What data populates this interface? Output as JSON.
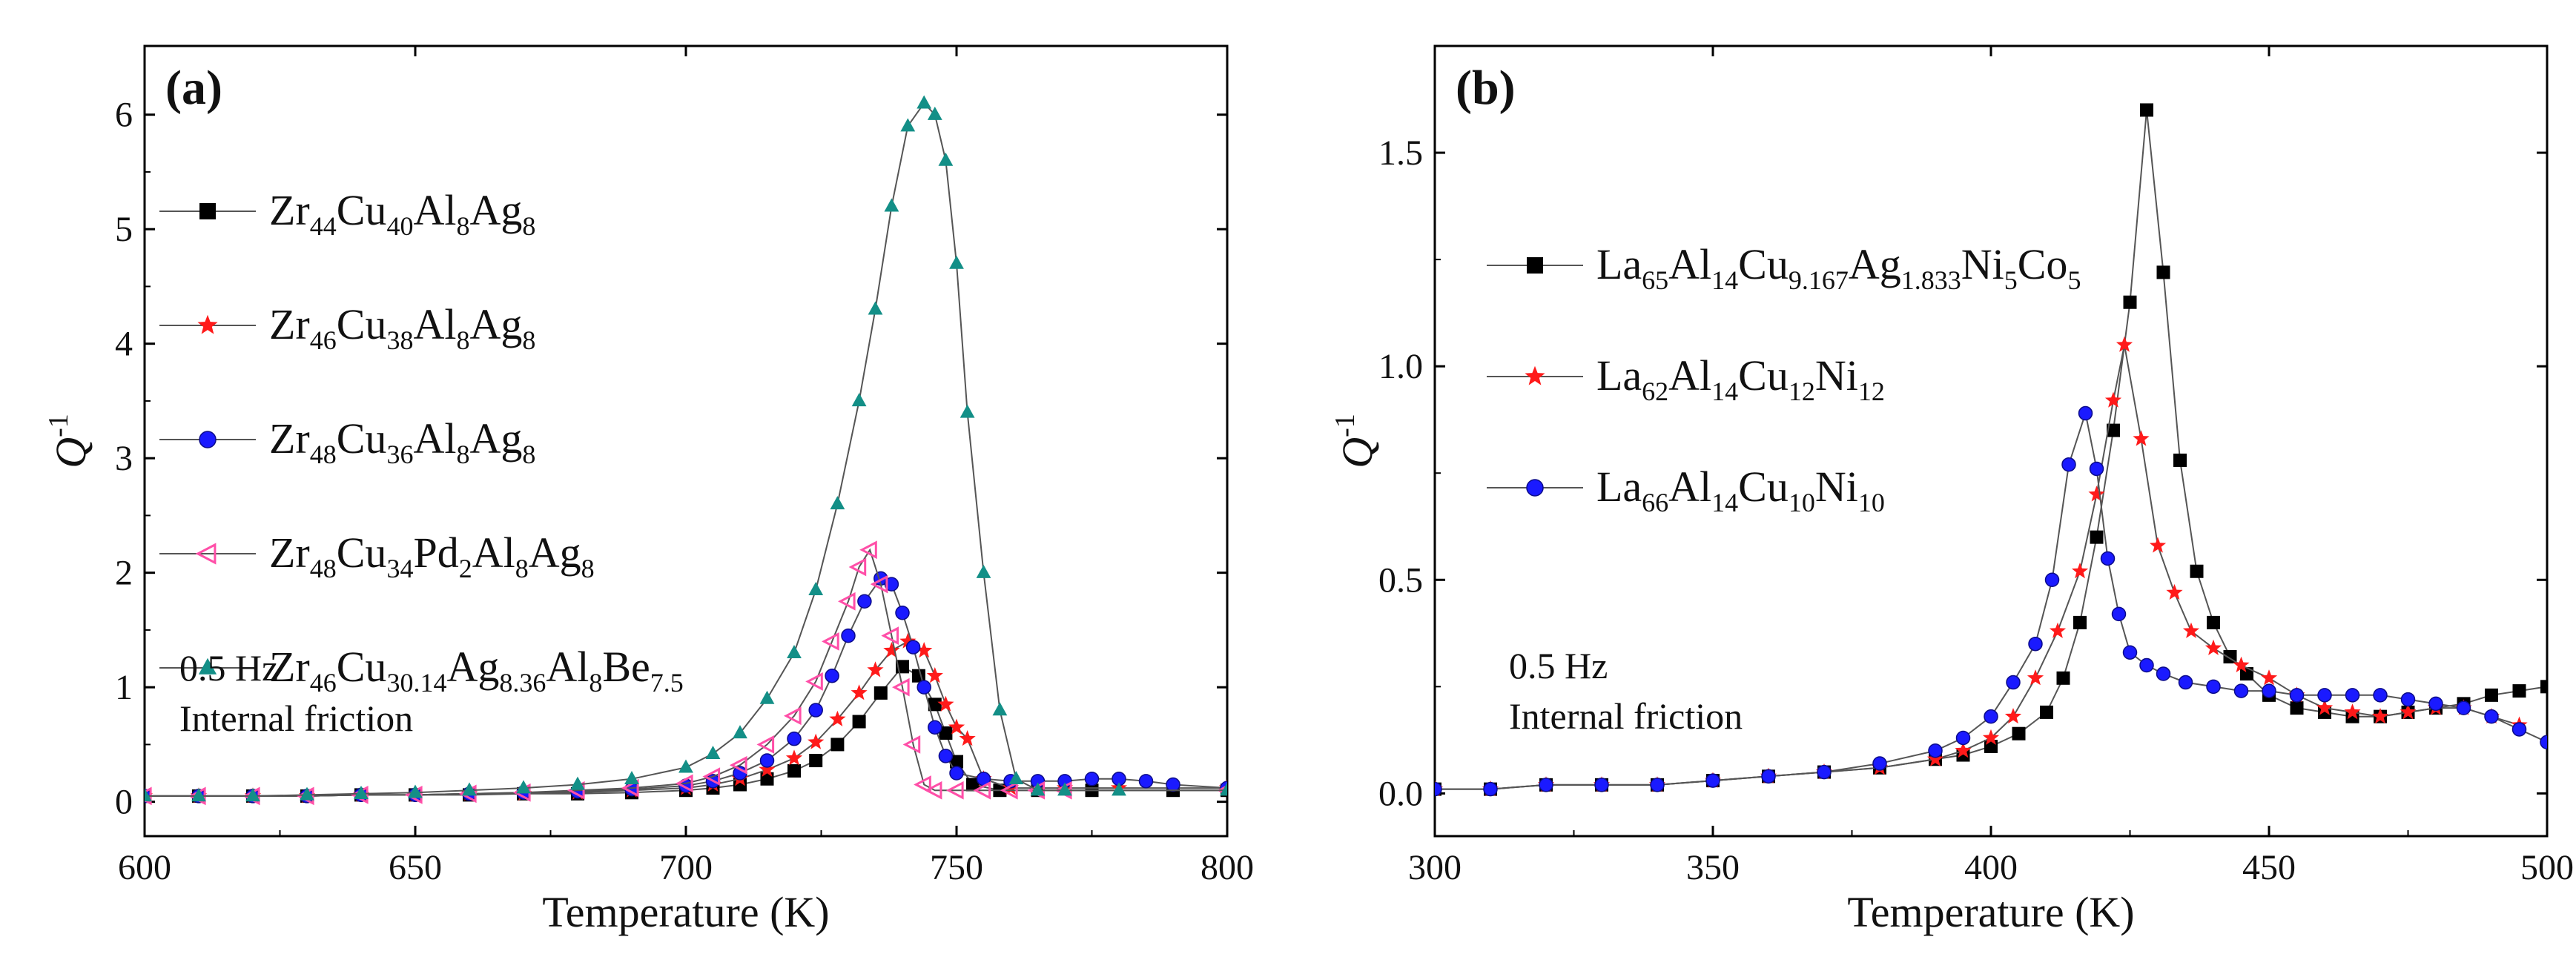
{
  "chart_data": [
    {
      "type": "line",
      "panel_label": "(a)",
      "xlabel": "Temperature (K)",
      "ylabel": "Q",
      "ylabel_sup": "-1",
      "xlim": [
        600,
        800
      ],
      "ylim": [
        -0.3,
        6.6
      ],
      "xticks": [
        "600",
        "650",
        "700",
        "750",
        "800"
      ],
      "yticks": [
        "0",
        "1",
        "2",
        "3",
        "4",
        "5",
        "6"
      ],
      "annotations": [
        "0.5 Hz",
        "Internal friction"
      ],
      "series": [
        {
          "name": "Zr44Cu40Al8Ag8",
          "label_parts": [
            [
              "Zr",
              ""
            ],
            [
              "44",
              "sub"
            ],
            [
              "Cu",
              ""
            ],
            [
              "40",
              "sub"
            ],
            [
              "Al",
              ""
            ],
            [
              "8",
              "sub"
            ],
            [
              "Ag",
              ""
            ],
            [
              "8",
              "sub"
            ]
          ],
          "color": "#000000",
          "marker": "square",
          "x": [
            600,
            610,
            620,
            630,
            640,
            650,
            660,
            670,
            680,
            690,
            700,
            705,
            710,
            715,
            720,
            724,
            728,
            732,
            736,
            740,
            743,
            746,
            748,
            750,
            753,
            758,
            765,
            775,
            790,
            800
          ],
          "y": [
            0.05,
            0.05,
            0.05,
            0.05,
            0.06,
            0.06,
            0.06,
            0.07,
            0.07,
            0.08,
            0.1,
            0.12,
            0.15,
            0.2,
            0.27,
            0.36,
            0.5,
            0.7,
            0.95,
            1.18,
            1.1,
            0.85,
            0.6,
            0.35,
            0.15,
            0.1,
            0.1,
            0.1,
            0.1,
            0.1
          ]
        },
        {
          "name": "Zr46Cu38Al8Ag8",
          "label_parts": [
            [
              "Zr",
              ""
            ],
            [
              "46",
              "sub"
            ],
            [
              "Cu",
              ""
            ],
            [
              "38",
              "sub"
            ],
            [
              "Al",
              ""
            ],
            [
              "8",
              "sub"
            ],
            [
              "Ag",
              ""
            ],
            [
              "8",
              "sub"
            ]
          ],
          "color": "#ff1a1a",
          "marker": "star",
          "x": [
            600,
            610,
            620,
            630,
            640,
            650,
            660,
            670,
            680,
            690,
            700,
            705,
            710,
            715,
            720,
            724,
            728,
            732,
            735,
            738,
            741,
            744,
            746,
            748,
            750,
            752,
            755,
            760,
            770,
            780,
            800
          ],
          "y": [
            0.05,
            0.05,
            0.05,
            0.05,
            0.06,
            0.06,
            0.07,
            0.07,
            0.08,
            0.1,
            0.12,
            0.15,
            0.2,
            0.28,
            0.38,
            0.52,
            0.72,
            0.95,
            1.15,
            1.32,
            1.4,
            1.32,
            1.1,
            0.85,
            0.65,
            0.55,
            0.2,
            0.12,
            0.12,
            0.12,
            0.12
          ]
        },
        {
          "name": "Zr48Cu36Al8Ag8",
          "label_parts": [
            [
              "Zr",
              ""
            ],
            [
              "48",
              "sub"
            ],
            [
              "Cu",
              ""
            ],
            [
              "36",
              "sub"
            ],
            [
              "Al",
              ""
            ],
            [
              "8",
              "sub"
            ],
            [
              "Ag",
              ""
            ],
            [
              "8",
              "sub"
            ]
          ],
          "color": "#1a1aff",
          "marker": "circle",
          "x": [
            600,
            610,
            620,
            630,
            640,
            650,
            660,
            670,
            680,
            690,
            700,
            705,
            710,
            715,
            720,
            724,
            727,
            730,
            733,
            736,
            738,
            740,
            742,
            744,
            746,
            748,
            750,
            755,
            760,
            765,
            770,
            775,
            780,
            785,
            790,
            800
          ],
          "y": [
            0.05,
            0.05,
            0.05,
            0.05,
            0.06,
            0.06,
            0.07,
            0.08,
            0.09,
            0.11,
            0.14,
            0.18,
            0.25,
            0.36,
            0.55,
            0.8,
            1.1,
            1.45,
            1.75,
            1.95,
            1.9,
            1.65,
            1.35,
            1.0,
            0.65,
            0.4,
            0.25,
            0.2,
            0.18,
            0.18,
            0.18,
            0.2,
            0.2,
            0.18,
            0.15,
            0.12
          ]
        },
        {
          "name": "Zr48Cu34Pd2Al8Ag8",
          "label_parts": [
            [
              "Zr",
              ""
            ],
            [
              "48",
              "sub"
            ],
            [
              "Cu",
              ""
            ],
            [
              "34",
              "sub"
            ],
            [
              "Pd",
              ""
            ],
            [
              "2",
              "sub"
            ],
            [
              "Al",
              ""
            ],
            [
              "8",
              "sub"
            ],
            [
              "Ag",
              ""
            ],
            [
              "8",
              "sub"
            ]
          ],
          "color": "#ff4fa8",
          "marker": "triangle-left",
          "x": [
            600,
            610,
            620,
            630,
            640,
            650,
            660,
            670,
            680,
            690,
            700,
            705,
            710,
            715,
            720,
            724,
            727,
            730,
            732,
            734,
            736,
            738,
            740,
            742,
            744,
            746,
            750,
            755,
            760,
            765,
            770,
            800
          ],
          "y": [
            0.05,
            0.05,
            0.05,
            0.05,
            0.06,
            0.06,
            0.07,
            0.08,
            0.1,
            0.12,
            0.16,
            0.22,
            0.32,
            0.5,
            0.75,
            1.05,
            1.4,
            1.75,
            2.05,
            2.2,
            1.9,
            1.45,
            1.0,
            0.5,
            0.15,
            0.1,
            0.1,
            0.1,
            0.1,
            0.1,
            0.1,
            0.1
          ]
        },
        {
          "name": "Zr46Cu30.14Ag8.36Al8Be7.5",
          "label_parts": [
            [
              "Zr",
              ""
            ],
            [
              "46",
              "sub"
            ],
            [
              "Cu",
              ""
            ],
            [
              "30.14",
              "sub"
            ],
            [
              "Ag",
              ""
            ],
            [
              "8.36",
              "sub"
            ],
            [
              "Al",
              ""
            ],
            [
              "8",
              "sub"
            ],
            [
              "Be",
              ""
            ],
            [
              "7.5",
              "sub"
            ]
          ],
          "color": "#138f87",
          "marker": "triangle-up",
          "x": [
            600,
            610,
            620,
            630,
            640,
            650,
            660,
            670,
            680,
            690,
            700,
            705,
            710,
            715,
            720,
            724,
            728,
            732,
            735,
            738,
            741,
            744,
            746,
            748,
            750,
            752,
            755,
            758,
            761,
            765,
            770,
            780,
            800
          ],
          "y": [
            0.05,
            0.05,
            0.05,
            0.06,
            0.07,
            0.08,
            0.1,
            0.12,
            0.15,
            0.2,
            0.3,
            0.42,
            0.6,
            0.9,
            1.3,
            1.85,
            2.6,
            3.5,
            4.3,
            5.2,
            5.9,
            6.1,
            6.0,
            5.6,
            4.7,
            3.4,
            2.0,
            0.8,
            0.2,
            0.1,
            0.1,
            0.1,
            0.1
          ]
        }
      ]
    },
    {
      "type": "line",
      "panel_label": "(b)",
      "xlabel": "Temperature (K)",
      "ylabel": "Q",
      "ylabel_sup": "-1",
      "xlim": [
        300,
        500
      ],
      "ylim": [
        -0.1,
        1.75
      ],
      "xticks": [
        "300",
        "350",
        "400",
        "450",
        "500"
      ],
      "yticks": [
        "0.0",
        "0.5",
        "1.0",
        "1.5"
      ],
      "annotations": [
        "0.5 Hz",
        "Internal friction"
      ],
      "series": [
        {
          "name": "La65Al14Cu9.167Ag1.833Ni5Co5",
          "label_parts": [
            [
              "La",
              ""
            ],
            [
              "65",
              "sub"
            ],
            [
              "Al",
              ""
            ],
            [
              "14",
              "sub"
            ],
            [
              "Cu",
              ""
            ],
            [
              "9.167",
              "sub"
            ],
            [
              "Ag",
              ""
            ],
            [
              "1.833",
              "sub"
            ],
            [
              "Ni",
              ""
            ],
            [
              "5",
              "sub"
            ],
            [
              "Co",
              ""
            ],
            [
              "5",
              "sub"
            ]
          ],
          "color": "#000000",
          "marker": "square",
          "x": [
            300,
            310,
            320,
            330,
            340,
            350,
            360,
            370,
            380,
            390,
            395,
            400,
            405,
            410,
            413,
            416,
            419,
            422,
            425,
            428,
            431,
            434,
            437,
            440,
            443,
            446,
            450,
            455,
            460,
            465,
            470,
            475,
            480,
            485,
            490,
            495,
            500
          ],
          "y": [
            0.01,
            0.01,
            0.02,
            0.02,
            0.02,
            0.03,
            0.04,
            0.05,
            0.06,
            0.08,
            0.09,
            0.11,
            0.14,
            0.19,
            0.27,
            0.4,
            0.6,
            0.85,
            1.15,
            1.6,
            1.22,
            0.78,
            0.52,
            0.4,
            0.32,
            0.28,
            0.23,
            0.2,
            0.19,
            0.18,
            0.18,
            0.19,
            0.2,
            0.21,
            0.23,
            0.24,
            0.25
          ]
        },
        {
          "name": "La62Al14Cu12Ni12",
          "label_parts": [
            [
              "La",
              ""
            ],
            [
              "62",
              "sub"
            ],
            [
              "Al",
              ""
            ],
            [
              "14",
              "sub"
            ],
            [
              "Cu",
              ""
            ],
            [
              "12",
              "sub"
            ],
            [
              "Ni",
              ""
            ],
            [
              "12",
              "sub"
            ]
          ],
          "color": "#ff1a1a",
          "marker": "star",
          "x": [
            300,
            310,
            320,
            330,
            340,
            350,
            360,
            370,
            380,
            390,
            395,
            400,
            404,
            408,
            412,
            416,
            419,
            422,
            424,
            427,
            430,
            433,
            436,
            440,
            445,
            450,
            455,
            460,
            465,
            470,
            475,
            480,
            485,
            490,
            495
          ],
          "y": [
            0.01,
            0.01,
            0.02,
            0.02,
            0.02,
            0.03,
            0.04,
            0.05,
            0.06,
            0.08,
            0.1,
            0.13,
            0.18,
            0.27,
            0.38,
            0.52,
            0.7,
            0.92,
            1.05,
            0.83,
            0.58,
            0.47,
            0.38,
            0.34,
            0.3,
            0.27,
            0.23,
            0.2,
            0.19,
            0.18,
            0.19,
            0.2,
            0.2,
            0.18,
            0.16
          ]
        },
        {
          "name": "La66Al14Cu10Ni10",
          "label_parts": [
            [
              "La",
              ""
            ],
            [
              "66",
              "sub"
            ],
            [
              "Al",
              ""
            ],
            [
              "14",
              "sub"
            ],
            [
              "Cu",
              ""
            ],
            [
              "10",
              "sub"
            ],
            [
              "Ni",
              ""
            ],
            [
              "10",
              "sub"
            ]
          ],
          "color": "#1a1aff",
          "marker": "circle",
          "x": [
            300,
            310,
            320,
            330,
            340,
            350,
            360,
            370,
            380,
            390,
            395,
            400,
            404,
            408,
            411,
            414,
            417,
            419,
            421,
            423,
            425,
            428,
            431,
            435,
            440,
            445,
            450,
            455,
            460,
            465,
            470,
            475,
            480,
            485,
            490,
            495,
            500
          ],
          "y": [
            0.01,
            0.01,
            0.02,
            0.02,
            0.02,
            0.03,
            0.04,
            0.05,
            0.07,
            0.1,
            0.13,
            0.18,
            0.26,
            0.35,
            0.5,
            0.77,
            0.89,
            0.76,
            0.55,
            0.42,
            0.33,
            0.3,
            0.28,
            0.26,
            0.25,
            0.24,
            0.24,
            0.23,
            0.23,
            0.23,
            0.23,
            0.22,
            0.21,
            0.2,
            0.18,
            0.15,
            0.12
          ]
        }
      ]
    }
  ]
}
